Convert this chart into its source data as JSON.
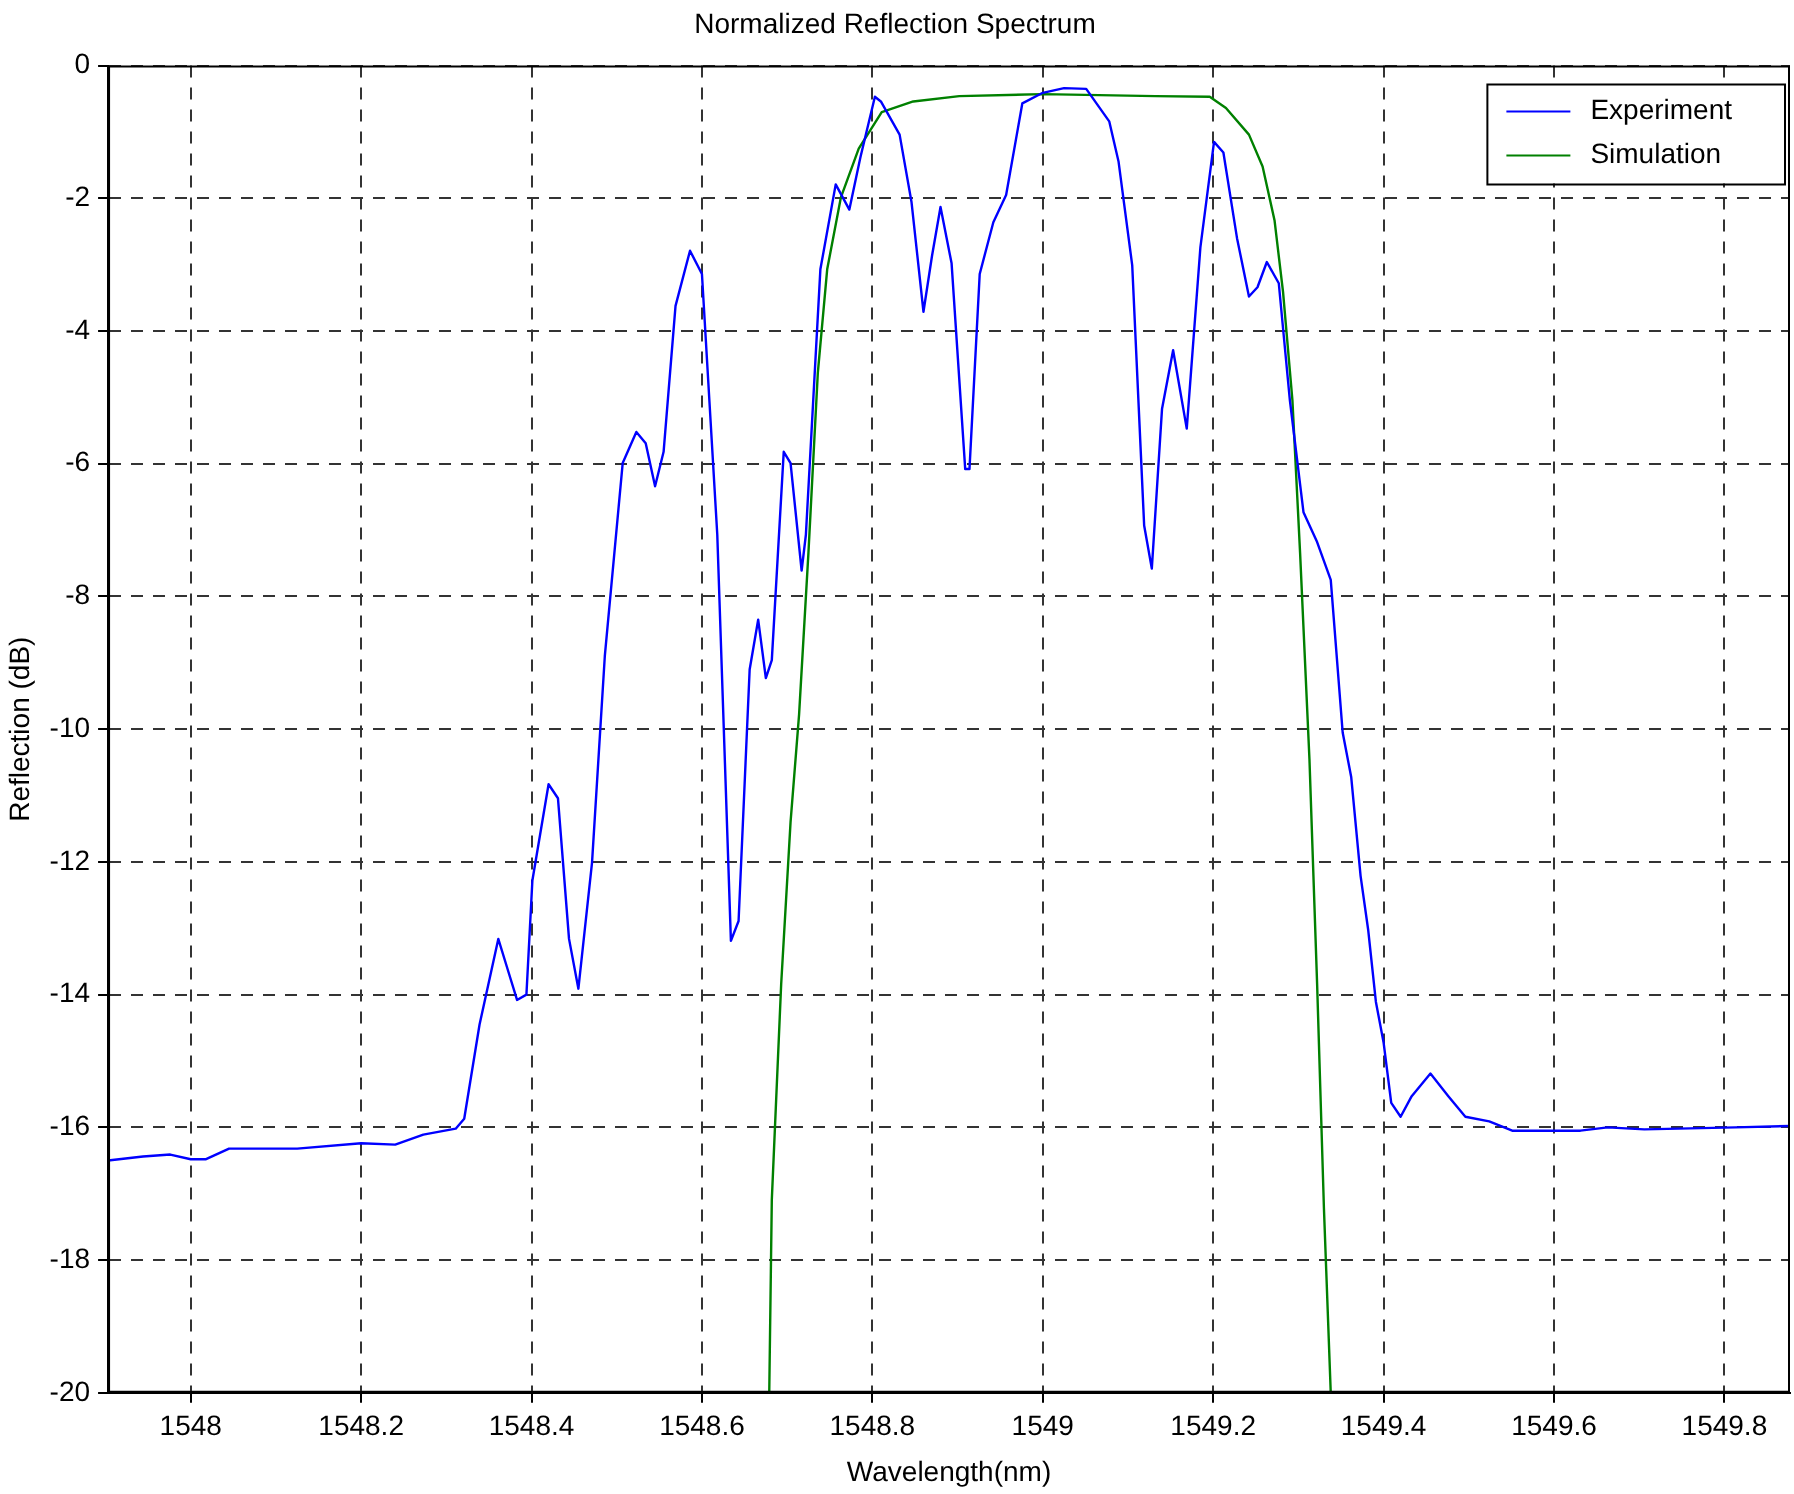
{
  "chart_data": {
    "type": "line",
    "title": "Normalized Reflection Spectrum",
    "xlabel": "Wavelength(nm)",
    "ylabel": "Reflection (dB)",
    "xlim": [
      1547.903,
      1549.877
    ],
    "ylim": [
      -20,
      0
    ],
    "xticks": [
      1548,
      1548.2,
      1548.4,
      1548.6,
      1548.8,
      1549,
      1549.2,
      1549.4,
      1549.6,
      1549.8
    ],
    "yticks": [
      -20,
      -18,
      -16,
      -14,
      -12,
      -10,
      -8,
      -6,
      -4,
      -2,
      0
    ],
    "grid": true,
    "legend": "top right",
    "marker": "none",
    "line_style": "solid",
    "series": [
      {
        "name": "Experiment",
        "color": "#0000ff",
        "x": [
          1547.903,
          1547.944,
          1547.976,
          1548.0,
          1548.018,
          1548.045,
          1548.125,
          1548.2,
          1548.24,
          1548.273,
          1548.311,
          1548.321,
          1548.339,
          1548.361,
          1548.383,
          1548.394,
          1548.401,
          1548.42,
          1548.431,
          1548.444,
          1548.455,
          1548.471,
          1548.486,
          1548.507,
          1548.523,
          1548.534,
          1548.545,
          1548.555,
          1548.569,
          1548.586,
          1548.6,
          1548.618,
          1548.634,
          1548.643,
          1548.656,
          1548.666,
          1548.675,
          1548.682,
          1548.696,
          1548.704,
          1548.717,
          1548.722,
          1548.739,
          1548.757,
          1548.773,
          1548.786,
          1548.803,
          1548.81,
          1548.832,
          1548.846,
          1548.86,
          1548.87,
          1548.88,
          1548.893,
          1548.909,
          1548.914,
          1548.926,
          1548.942,
          1548.957,
          1548.976,
          1549.0,
          1549.025,
          1549.051,
          1549.078,
          1549.089,
          1549.105,
          1549.119,
          1549.128,
          1549.14,
          1549.153,
          1549.169,
          1549.185,
          1549.201,
          1549.212,
          1549.228,
          1549.242,
          1549.252,
          1549.263,
          1549.277,
          1549.29,
          1549.306,
          1549.322,
          1549.338,
          1549.352,
          1549.362,
          1549.373,
          1549.382,
          1549.391,
          1549.4,
          1549.409,
          1549.42,
          1549.433,
          1549.455,
          1549.476,
          1549.496,
          1549.524,
          1549.551,
          1549.631,
          1549.663,
          1549.706,
          1549.813,
          1549.877
        ],
        "values": [
          -16.5,
          -16.44,
          -16.41,
          -16.48,
          -16.48,
          -16.32,
          -16.32,
          -16.24,
          -16.26,
          -16.11,
          -16.02,
          -15.87,
          -14.45,
          -13.16,
          -14.08,
          -14.0,
          -12.28,
          -10.83,
          -11.04,
          -13.16,
          -13.91,
          -12.01,
          -8.9,
          -5.99,
          -5.52,
          -5.69,
          -6.34,
          -5.82,
          -3.62,
          -2.79,
          -3.14,
          -7.07,
          -13.19,
          -12.89,
          -9.1,
          -8.35,
          -9.23,
          -8.96,
          -5.82,
          -5.99,
          -7.61,
          -7.07,
          -3.07,
          -1.79,
          -2.17,
          -1.38,
          -0.47,
          -0.54,
          -1.04,
          -2.06,
          -3.71,
          -2.87,
          -2.13,
          -2.98,
          -6.08,
          -6.08,
          -3.14,
          -2.36,
          -1.95,
          -0.57,
          -0.41,
          -0.34,
          -0.35,
          -0.84,
          -1.45,
          -3.01,
          -6.93,
          -7.58,
          -5.17,
          -4.29,
          -5.47,
          -2.74,
          -1.15,
          -1.31,
          -2.6,
          -3.48,
          -3.34,
          -2.96,
          -3.28,
          -5.04,
          -6.73,
          -7.18,
          -7.75,
          -10.05,
          -10.72,
          -12.21,
          -13.03,
          -14.11,
          -14.72,
          -15.63,
          -15.84,
          -15.53,
          -15.19,
          -15.53,
          -15.84,
          -15.91,
          -16.05,
          -16.05,
          -16.0,
          -16.03,
          -16.0,
          -15.98
        ]
      },
      {
        "name": "Simulation",
        "color": "#008000",
        "x": [
          1548.679,
          1548.682,
          1548.693,
          1548.704,
          1548.714,
          1548.725,
          1548.736,
          1548.747,
          1548.763,
          1548.784,
          1548.811,
          1548.848,
          1548.902,
          1549.0,
          1549.132,
          1549.196,
          1549.215,
          1549.242,
          1549.258,
          1549.272,
          1549.282,
          1549.293,
          1549.302,
          1549.313,
          1549.322,
          1549.33,
          1549.338
        ],
        "values": [
          -20,
          -17.09,
          -13.84,
          -11.4,
          -9.78,
          -7.34,
          -4.63,
          -3.07,
          -1.99,
          -1.25,
          -0.7,
          -0.54,
          -0.46,
          -0.43,
          -0.46,
          -0.47,
          -0.64,
          -1.04,
          -1.52,
          -2.33,
          -3.41,
          -5.04,
          -7.34,
          -10.45,
          -13.84,
          -17.22,
          -20
        ]
      }
    ]
  }
}
